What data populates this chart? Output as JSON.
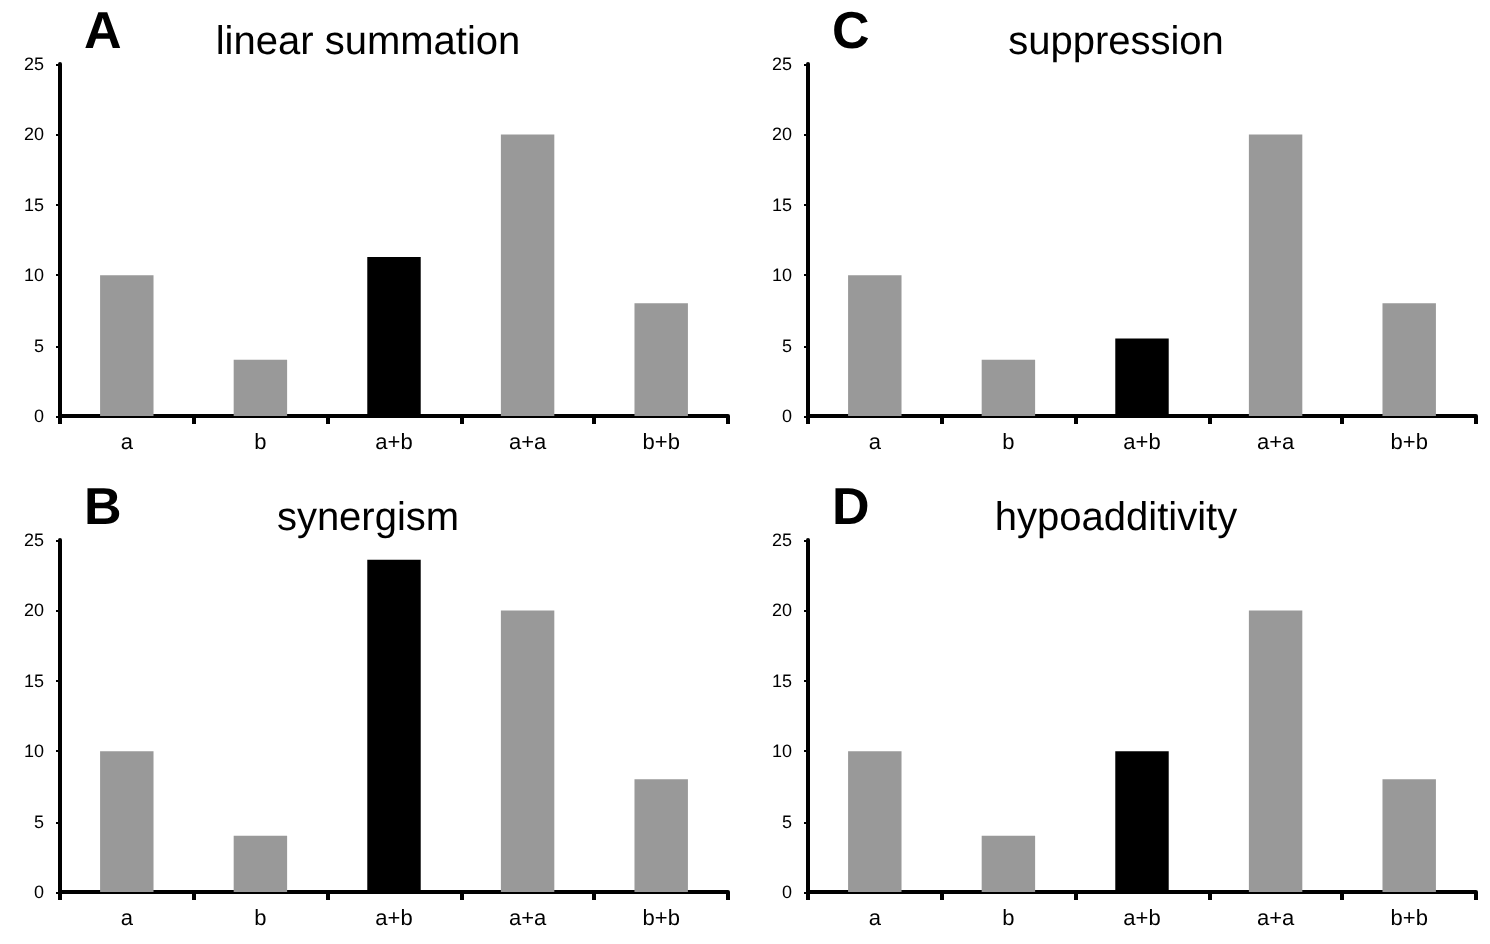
{
  "chart_data": [
    {
      "type": "bar",
      "title": "linear summation",
      "annotations": [
        "A"
      ],
      "categories": [
        "a",
        "b",
        "a+b",
        "a+a",
        "b+b"
      ],
      "values": [
        10,
        4,
        11.3,
        20,
        8
      ],
      "colors": [
        "#999999",
        "#999999",
        "#000000",
        "#999999",
        "#999999"
      ],
      "ylim": [
        0,
        25
      ],
      "yticks": [
        0,
        5,
        10,
        15,
        20,
        25
      ],
      "grid": false
    },
    {
      "type": "bar",
      "title": "suppression",
      "annotations": [
        "C"
      ],
      "categories": [
        "a",
        "b",
        "a+b",
        "a+a",
        "b+b"
      ],
      "values": [
        10,
        4,
        5.5,
        20,
        8
      ],
      "colors": [
        "#999999",
        "#999999",
        "#000000",
        "#999999",
        "#999999"
      ],
      "ylim": [
        0,
        25
      ],
      "yticks": [
        0,
        5,
        10,
        15,
        20,
        25
      ],
      "grid": false
    },
    {
      "type": "bar",
      "title": "synergism",
      "annotations": [
        "B"
      ],
      "categories": [
        "a",
        "b",
        "a+b",
        "a+a",
        "b+b"
      ],
      "values": [
        10,
        4,
        23.6,
        20,
        8
      ],
      "colors": [
        "#999999",
        "#999999",
        "#000000",
        "#999999",
        "#999999"
      ],
      "ylim": [
        0,
        25
      ],
      "yticks": [
        0,
        5,
        10,
        15,
        20,
        25
      ],
      "grid": false
    },
    {
      "type": "bar",
      "title": "hypoadditivity",
      "annotations": [
        "D"
      ],
      "categories": [
        "a",
        "b",
        "a+b",
        "a+a",
        "b+b"
      ],
      "values": [
        10,
        4,
        10,
        20,
        8
      ],
      "colors": [
        "#999999",
        "#999999",
        "#000000",
        "#999999",
        "#999999"
      ],
      "ylim": [
        0,
        25
      ],
      "yticks": [
        0,
        5,
        10,
        15,
        20,
        25
      ],
      "grid": false
    }
  ]
}
